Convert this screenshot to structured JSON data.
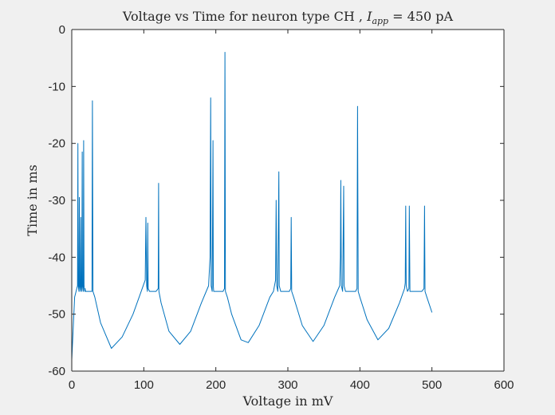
{
  "chart_data": {
    "type": "line",
    "title": "Voltage vs Time for neuron type CH , I_app = 450 pA",
    "title_parts": {
      "prefix": "Voltage vs Time for neuron type CH , ",
      "var_main": "I",
      "var_sub": "app",
      "suffix": " = 450 pA"
    },
    "xlabel": "Voltage in mV",
    "ylabel": "Time in ms",
    "xlim": [
      0,
      600
    ],
    "ylim": [
      -60,
      0
    ],
    "xticks": [
      0,
      100,
      200,
      300,
      400,
      500,
      600
    ],
    "yticks": [
      0,
      -10,
      -20,
      -30,
      -40,
      -50,
      -60
    ],
    "grid": false,
    "background": "#f0f0f0",
    "plot_background": "#ffffff",
    "series": [
      {
        "color": "#0072bd",
        "x": [
          0,
          4,
          8,
          8.5,
          9,
          10,
          10.5,
          11,
          12,
          12.5,
          13,
          14,
          14.5,
          15,
          16,
          16.5,
          17,
          18,
          18.5,
          19,
          20,
          20.5,
          21,
          25,
          28,
          28.7,
          29.4,
          32,
          40,
          55,
          70,
          85,
          95,
          102,
          103,
          104,
          105,
          105.5,
          106,
          108,
          117,
          120,
          120.5,
          121,
          124,
          135,
          150,
          165,
          180,
          190,
          192,
          192.8,
          193.5,
          195,
          196,
          196.5,
          197,
          200,
          210,
          212,
          212.7,
          213.3,
          216,
          222,
          235,
          245,
          260,
          275,
          280,
          283,
          283.7,
          284.5,
          286,
          287.5,
          288,
          290,
          302,
          304,
          304.7,
          305.3,
          308,
          320,
          335,
          350,
          365,
          372,
          373,
          373.5,
          374.3,
          376,
          377.5,
          378,
          380,
          394,
          396,
          396.8,
          397.6,
          400,
          410,
          425,
          440,
          455,
          462,
          463,
          463.6,
          464.3,
          466,
          468,
          468.6,
          469.5,
          471,
          486,
          489,
          489.7,
          490.4,
          493,
          500
        ],
        "y": [
          -58,
          -47,
          -45,
          -20,
          -45,
          -46,
          -29.5,
          -45,
          -46,
          -33,
          -45,
          -46,
          -21.5,
          -45,
          -46,
          -19.5,
          -45,
          -46,
          -45.5,
          -46,
          -46,
          -46,
          -46,
          -46,
          -46,
          -12.5,
          -46,
          -47,
          -51.5,
          -56,
          -54,
          -50,
          -46.5,
          -44,
          -33,
          -45,
          -46,
          -34,
          -45.5,
          -46,
          -46,
          -45.5,
          -27,
          -46,
          -48,
          -53,
          -55.3,
          -53,
          -48,
          -45,
          -40,
          -12,
          -45,
          -46,
          -19.5,
          -45,
          -46,
          -46,
          -46,
          -45.5,
          -4,
          -46,
          -47,
          -50,
          -54.5,
          -55,
          -52,
          -47,
          -46,
          -44,
          -30,
          -45,
          -46,
          -25,
          -45,
          -46,
          -46,
          -45.5,
          -33,
          -46,
          -47,
          -52,
          -54.8,
          -52,
          -47,
          -45,
          -40,
          -26.5,
          -45,
          -46,
          -27.5,
          -45,
          -46,
          -46,
          -45.5,
          -13.5,
          -46,
          -47,
          -51,
          -54.5,
          -52.5,
          -48,
          -45.5,
          -44.5,
          -31,
          -45,
          -46,
          -45.5,
          -31,
          -46,
          -46,
          -46,
          -45.5,
          -31,
          -46,
          -47,
          -49.7
        ]
      }
    ]
  }
}
